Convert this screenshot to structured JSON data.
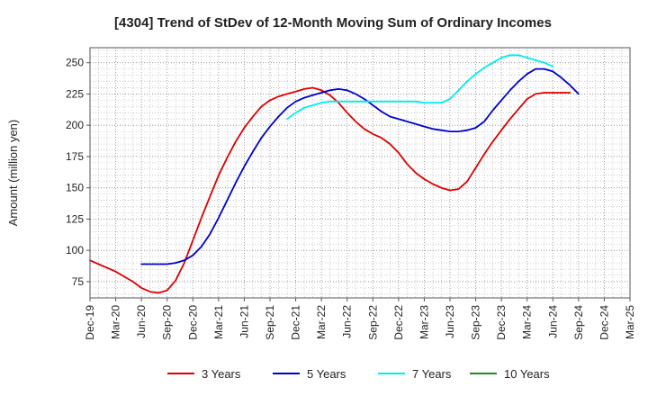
{
  "chart_data": {
    "type": "line",
    "title": "[4304]  Trend of StDev of 12-Month Moving Sum of Ordinary Incomes",
    "xlabel": "",
    "ylabel": "Amount (million yen)",
    "ylim": [
      62,
      262
    ],
    "yticks": [
      75,
      100,
      125,
      150,
      175,
      200,
      225,
      250
    ],
    "x_ticks": [
      "Dec-19",
      "Mar-20",
      "Jun-20",
      "Sep-20",
      "Dec-20",
      "Mar-21",
      "Jun-21",
      "Sep-21",
      "Dec-21",
      "Mar-22",
      "Jun-22",
      "Sep-22",
      "Dec-22",
      "Mar-23",
      "Jun-23",
      "Sep-23",
      "Dec-23",
      "Mar-24",
      "Jun-24",
      "Sep-24",
      "Dec-24",
      "Mar-25"
    ],
    "grid": true,
    "legend_position": "bottom",
    "series": [
      {
        "name": "3 Years",
        "color": "#dd0000",
        "start_index": 0,
        "values": [
          92,
          89,
          86,
          83,
          79,
          75,
          70,
          67,
          66,
          68,
          76,
          90,
          108,
          126,
          143,
          160,
          174,
          187,
          198,
          207,
          215,
          220,
          223,
          225,
          227,
          229,
          230,
          228,
          224,
          218,
          210,
          203,
          197,
          193,
          190,
          185,
          178,
          169,
          162,
          157,
          153,
          150,
          148,
          149,
          155,
          166,
          177,
          187,
          196,
          205,
          213,
          221,
          225,
          226,
          226,
          226,
          226
        ]
      },
      {
        "name": "5 Years",
        "color": "#0000cc",
        "start_index": 6,
        "values": [
          89,
          89,
          89,
          89,
          90,
          92,
          96,
          103,
          113,
          126,
          140,
          154,
          167,
          179,
          190,
          199,
          207,
          214,
          219,
          222,
          224,
          226,
          228,
          229,
          228,
          225,
          221,
          216,
          211,
          207,
          205,
          203,
          201,
          199,
          197,
          196,
          195,
          195,
          196,
          198,
          203,
          212,
          220,
          228,
          235,
          241,
          245,
          245,
          243,
          238,
          232,
          225
        ]
      },
      {
        "name": "7 Years",
        "color": "#00eeee",
        "start_index": 23,
        "values": [
          205,
          210,
          214,
          216,
          218,
          219,
          219,
          219,
          219,
          219,
          219,
          219,
          219,
          219,
          219,
          219,
          218,
          218,
          218,
          221,
          228,
          235,
          241,
          246,
          250,
          254,
          256,
          256,
          254,
          252,
          250,
          247
        ]
      },
      {
        "name": "10 Years",
        "color": "#228822",
        "start_index": 0,
        "values": []
      }
    ]
  }
}
